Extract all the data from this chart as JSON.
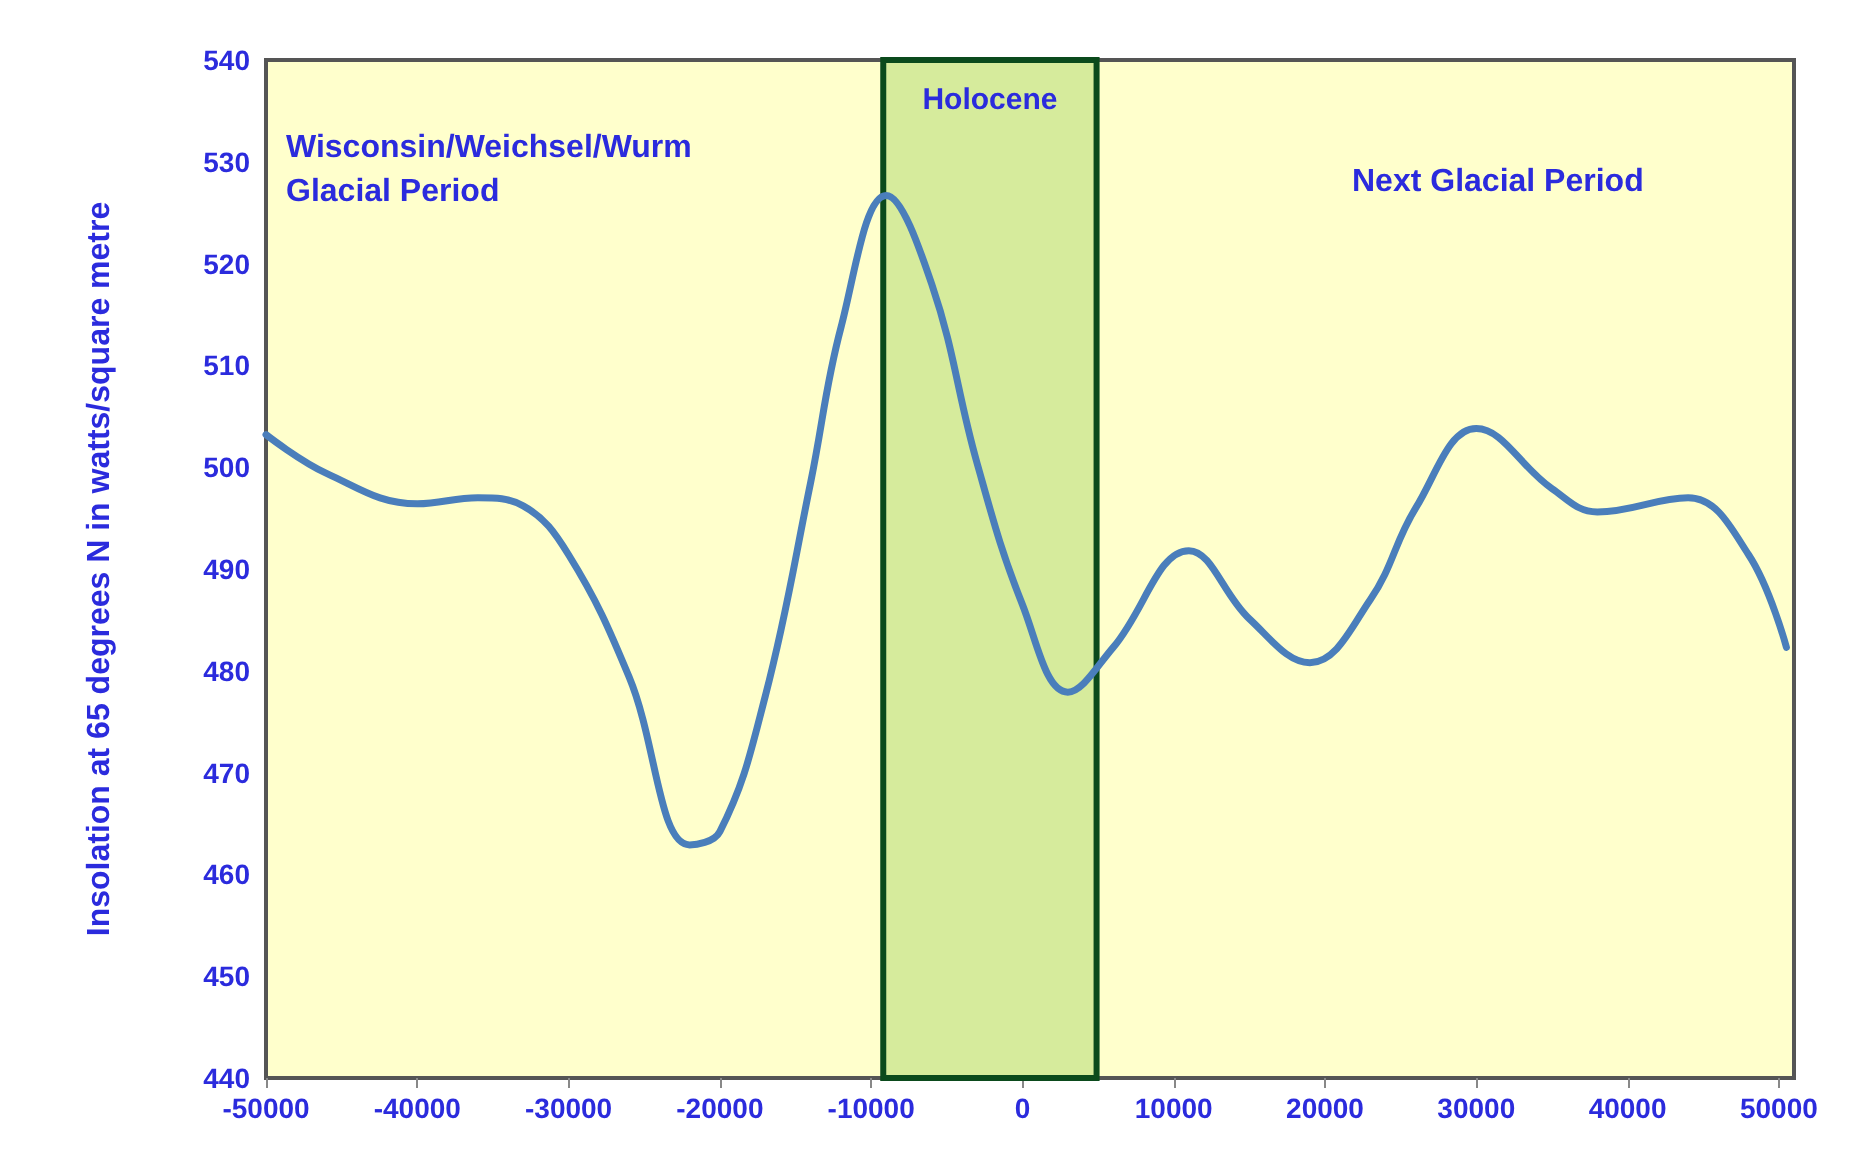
{
  "chart_data": {
    "type": "line",
    "ylabel": "Insolation at 65 degrees N in watts/square metre",
    "x": [
      -50000,
      -46000,
      -40000,
      -36000,
      -33000,
      -30000,
      -26000,
      -22000,
      -20000,
      -17000,
      -14000,
      -12000,
      -9000,
      -6000,
      -3000,
      0,
      3000,
      6000,
      11000,
      15000,
      19000,
      23000,
      26000,
      30000,
      35000,
      38000,
      44000,
      48000,
      50500
    ],
    "series": [
      {
        "color": "#4a7ebb",
        "values": [
          503.2,
          499.4,
          496.4,
          497,
          496.2,
          491.4,
          479.4,
          462.9,
          464.2,
          477.5,
          498.5,
          513.7,
          526.7,
          518,
          500.4,
          486.5,
          477.9,
          482.3,
          491.8,
          485.1,
          480.8,
          487,
          496,
          503.8,
          497.9,
          495.6,
          497,
          491.4,
          482.3
        ]
      }
    ],
    "xlim": [
      -50000,
      51000
    ],
    "xticks": [
      -50000,
      -40000,
      -30000,
      -20000,
      -10000,
      0,
      10000,
      20000,
      30000,
      40000,
      50000
    ],
    "ylim": [
      440,
      540
    ],
    "yticks": [
      440,
      450,
      460,
      470,
      480,
      490,
      500,
      510,
      520,
      530,
      540
    ],
    "bands": [
      {
        "axis": "x",
        "from": -9200,
        "to": 4900,
        "label": "Holocene",
        "color": "#d6eb9c"
      }
    ],
    "annotations": [
      "Wisconsin/Weichsel/Wurm\nGlacial Period",
      "Next Glacial Period"
    ],
    "grid": false,
    "marker": "none",
    "line_style": "solid"
  }
}
